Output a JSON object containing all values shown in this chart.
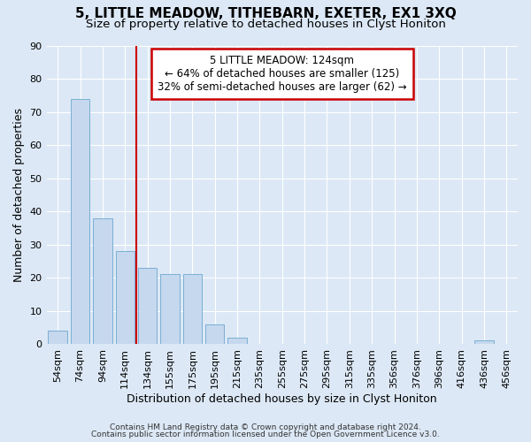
{
  "title": "5, LITTLE MEADOW, TITHEBARN, EXETER, EX1 3XQ",
  "subtitle": "Size of property relative to detached houses in Clyst Honiton",
  "xlabel": "Distribution of detached houses by size in Clyst Honiton",
  "ylabel": "Number of detached properties",
  "categories": [
    "54sqm",
    "74sqm",
    "94sqm",
    "114sqm",
    "134sqm",
    "155sqm",
    "175sqm",
    "195sqm",
    "215sqm",
    "235sqm",
    "255sqm",
    "275sqm",
    "295sqm",
    "315sqm",
    "335sqm",
    "356sqm",
    "376sqm",
    "396sqm",
    "416sqm",
    "436sqm",
    "456sqm"
  ],
  "values": [
    4,
    74,
    38,
    28,
    23,
    21,
    21,
    6,
    2,
    0,
    0,
    0,
    0,
    0,
    0,
    0,
    0,
    0,
    0,
    1,
    0
  ],
  "bar_color": "#c5d8ee",
  "bar_edge_color": "#7aafd4",
  "bar_width": 0.85,
  "ylim": [
    0,
    90
  ],
  "yticks": [
    0,
    10,
    20,
    30,
    40,
    50,
    60,
    70,
    80,
    90
  ],
  "red_line_x": 3.5,
  "annotation_line1": "5 LITTLE MEADOW: 124sqm",
  "annotation_line2": "← 64% of detached houses are smaller (125)",
  "annotation_line3": "32% of semi-detached houses are larger (62) →",
  "annotation_box_color": "#ffffff",
  "annotation_box_edge": "#cc0000",
  "footnote1": "Contains HM Land Registry data © Crown copyright and database right 2024.",
  "footnote2": "Contains public sector information licensed under the Open Government Licence v3.0.",
  "bg_color": "#dce8f5",
  "plot_bg_color": "#dce8f5",
  "grid_color": "#ffffff",
  "title_fontsize": 11,
  "subtitle_fontsize": 9.5,
  "tick_fontsize": 8,
  "ylabel_fontsize": 9,
  "xlabel_fontsize": 9,
  "footnote_fontsize": 6.5
}
